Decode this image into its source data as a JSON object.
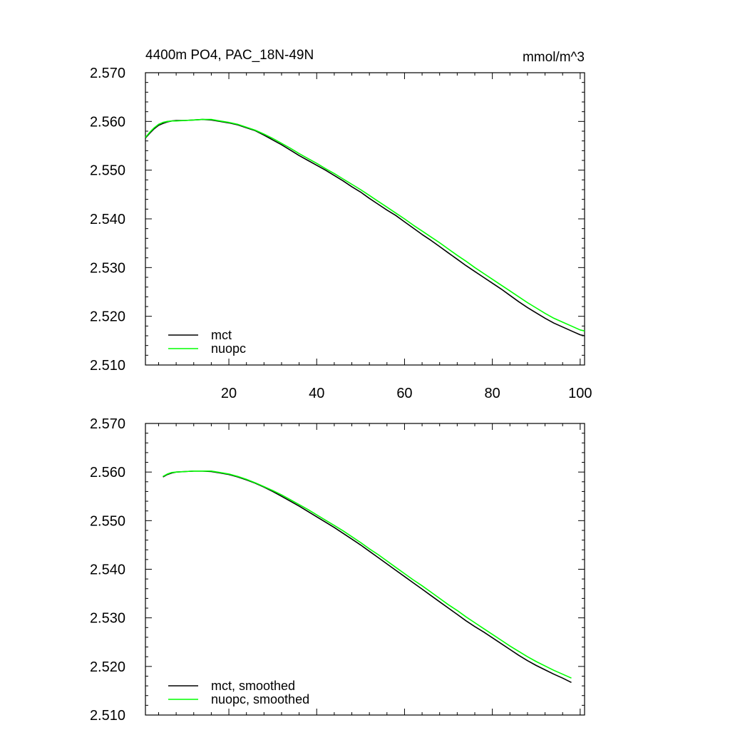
{
  "chart_data": [
    {
      "type": "line",
      "title": "4400m PO4, PAC_18N-49N",
      "units": "mmol/m^3",
      "xlabel": "",
      "ylabel": "",
      "xlim": [
        1,
        101
      ],
      "ylim": [
        2.51,
        2.57
      ],
      "x_ticks": [
        20,
        40,
        60,
        80,
        100
      ],
      "y_ticks": [
        "2.510",
        "2.520",
        "2.530",
        "2.540",
        "2.550",
        "2.560",
        "2.570"
      ],
      "grid": false,
      "legend": "bottom-left",
      "series": [
        {
          "name": "mct",
          "color": "#000000",
          "x": [
            1,
            2,
            3,
            4,
            5,
            6,
            7,
            8,
            10,
            12,
            14,
            16,
            18,
            20,
            22,
            24,
            26,
            28,
            30,
            32,
            34,
            36,
            38,
            40,
            42,
            44,
            46,
            48,
            50,
            52,
            54,
            56,
            58,
            60,
            62,
            64,
            66,
            68,
            70,
            72,
            74,
            76,
            78,
            80,
            82,
            84,
            86,
            88,
            90,
            92,
            94,
            96,
            98,
            100,
            101
          ],
          "values": [
            2.5566,
            2.5576,
            2.5585,
            2.5592,
            2.5596,
            2.5599,
            2.5601,
            2.5602,
            2.5602,
            2.5603,
            2.5604,
            2.5603,
            2.56,
            2.5597,
            2.5593,
            2.5587,
            2.5581,
            2.5572,
            2.5562,
            2.5552,
            2.5541,
            2.553,
            2.552,
            2.551,
            2.55,
            2.5489,
            2.5478,
            2.5466,
            2.5455,
            2.5442,
            2.543,
            2.5418,
            2.5407,
            2.5394,
            2.5381,
            2.5368,
            2.5356,
            2.5343,
            2.533,
            2.5317,
            2.5304,
            2.5292,
            2.528,
            2.5268,
            2.5256,
            2.5243,
            2.523,
            2.5218,
            2.5207,
            2.5196,
            2.5186,
            2.5178,
            2.517,
            2.5162,
            2.516
          ]
        },
        {
          "name": "nuopc",
          "color": "#00ff00",
          "x": [
            1,
            2,
            3,
            4,
            5,
            6,
            7,
            8,
            10,
            12,
            14,
            16,
            18,
            20,
            22,
            24,
            26,
            28,
            30,
            32,
            34,
            36,
            38,
            40,
            42,
            44,
            46,
            48,
            50,
            52,
            54,
            56,
            58,
            60,
            62,
            64,
            66,
            68,
            70,
            72,
            74,
            76,
            78,
            80,
            82,
            84,
            86,
            88,
            90,
            92,
            94,
            96,
            98,
            100,
            101
          ],
          "values": [
            2.5567,
            2.5578,
            2.5587,
            2.5594,
            2.5598,
            2.56,
            2.5601,
            2.5601,
            2.5602,
            2.5603,
            2.5604,
            2.5604,
            2.5601,
            2.5598,
            2.5594,
            2.5588,
            2.5582,
            2.5574,
            2.5565,
            2.5555,
            2.5545,
            2.5534,
            2.5524,
            2.5514,
            2.5503,
            2.5493,
            2.5482,
            2.5471,
            2.546,
            2.5448,
            2.5436,
            2.5424,
            2.5412,
            2.54,
            2.5387,
            2.5375,
            2.5363,
            2.5351,
            2.5338,
            2.5325,
            2.5313,
            2.53,
            2.5288,
            2.5276,
            2.5264,
            2.5252,
            2.524,
            2.5228,
            2.5217,
            2.5206,
            2.5196,
            2.5188,
            2.518,
            2.5172,
            2.517
          ]
        }
      ]
    },
    {
      "type": "line",
      "title": "",
      "xlabel": "",
      "ylabel": "",
      "xlim": [
        1,
        101
      ],
      "ylim": [
        2.51,
        2.57
      ],
      "x_ticks": [
        20,
        40,
        60,
        80,
        100
      ],
      "y_ticks": [
        "2.510",
        "2.520",
        "2.530",
        "2.540",
        "2.550",
        "2.560",
        "2.570"
      ],
      "grid": false,
      "legend": "bottom-left",
      "series": [
        {
          "name": "mct, smoothed",
          "color": "#000000",
          "x": [
            5,
            6,
            7,
            8,
            10,
            12,
            14,
            16,
            18,
            20,
            22,
            24,
            26,
            28,
            30,
            32,
            34,
            36,
            38,
            40,
            42,
            44,
            46,
            48,
            50,
            52,
            54,
            56,
            58,
            60,
            62,
            64,
            66,
            68,
            70,
            72,
            74,
            76,
            78,
            80,
            82,
            84,
            86,
            88,
            90,
            92,
            94,
            96,
            98
          ],
          "values": [
            2.559,
            2.5595,
            2.5598,
            2.56,
            2.5601,
            2.5602,
            2.5602,
            2.5601,
            2.5598,
            2.5595,
            2.559,
            2.5584,
            2.5577,
            2.5569,
            2.556,
            2.555,
            2.554,
            2.553,
            2.5519,
            2.5508,
            2.5497,
            2.5486,
            2.5474,
            2.5462,
            2.545,
            2.5437,
            2.5424,
            2.5411,
            2.5398,
            2.5385,
            2.5372,
            2.5359,
            2.5346,
            2.5333,
            2.532,
            2.5307,
            2.5294,
            2.5282,
            2.5271,
            2.5259,
            2.5247,
            2.5235,
            2.5223,
            2.5212,
            2.5202,
            2.5193,
            2.5184,
            2.5176,
            2.5167
          ]
        },
        {
          "name": "nuopc, smoothed",
          "color": "#00ff00",
          "x": [
            5,
            6,
            7,
            8,
            10,
            12,
            14,
            16,
            18,
            20,
            22,
            24,
            26,
            28,
            30,
            32,
            34,
            36,
            38,
            40,
            42,
            44,
            46,
            48,
            50,
            52,
            54,
            56,
            58,
            60,
            62,
            64,
            66,
            68,
            70,
            72,
            74,
            76,
            78,
            80,
            82,
            84,
            86,
            88,
            90,
            92,
            94,
            96,
            98
          ],
          "values": [
            2.5591,
            2.5596,
            2.5599,
            2.56,
            2.5601,
            2.5602,
            2.5602,
            2.5602,
            2.5599,
            2.5596,
            2.5591,
            2.5585,
            2.5578,
            2.557,
            2.5562,
            2.5553,
            2.5543,
            2.5533,
            2.5523,
            2.5512,
            2.5501,
            2.549,
            2.5479,
            2.5467,
            2.5455,
            2.5442,
            2.543,
            2.5417,
            2.5404,
            2.5391,
            2.5378,
            2.5366,
            2.5353,
            2.534,
            2.5327,
            2.5315,
            2.5302,
            2.529,
            2.5278,
            2.5266,
            2.5254,
            2.5242,
            2.5231,
            2.522,
            2.521,
            2.5201,
            2.5192,
            2.5184,
            2.5176
          ]
        }
      ]
    }
  ]
}
